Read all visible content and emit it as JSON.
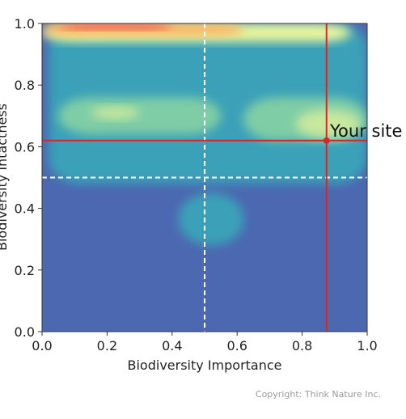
{
  "chart_data": {
    "type": "heatmap",
    "subtype": "filled-contour density",
    "xlabel": "Biodiversity Importance",
    "ylabel": "Biodiversity Intactness",
    "xlim": [
      0.0,
      1.0
    ],
    "ylim": [
      0.0,
      1.0
    ],
    "xticks": [
      "0.0",
      "0.2",
      "0.4",
      "0.6",
      "0.8",
      "1.0"
    ],
    "yticks": [
      "0.0",
      "0.2",
      "0.4",
      "0.6",
      "0.8",
      "1.0"
    ],
    "xtick_values": [
      0.0,
      0.2,
      0.4,
      0.6,
      0.8,
      1.0
    ],
    "ytick_values": [
      0.0,
      0.2,
      0.4,
      0.6,
      0.8,
      1.0
    ],
    "colormap": "Spectral_r",
    "grid": false,
    "reference_lines": {
      "x": 0.5,
      "y": 0.5,
      "style": "dashed",
      "color": "#ffffff"
    },
    "marker": {
      "x": 0.875,
      "y": 0.62,
      "label": "Your site",
      "color": "#d62728"
    },
    "density_regions": [
      {
        "level": "low",
        "color": "#4b68b0",
        "x": [
          0.0,
          1.0
        ],
        "y": [
          0.0,
          1.0
        ]
      },
      {
        "level": "mid",
        "color": "#3aa1b8",
        "x": [
          0.02,
          1.0
        ],
        "y": [
          0.48,
          1.0
        ]
      },
      {
        "level": "mid",
        "color": "#3aa1b8",
        "x": [
          0.42,
          0.62
        ],
        "y": [
          0.28,
          0.45
        ]
      },
      {
        "level": "high",
        "color": "#7fcda6",
        "x": [
          0.05,
          0.55
        ],
        "y": [
          0.64,
          0.76
        ]
      },
      {
        "level": "high",
        "color": "#7fcda6",
        "x": [
          0.62,
          1.0
        ],
        "y": [
          0.62,
          0.76
        ]
      },
      {
        "level": "higher",
        "color": "#c8e89e",
        "x": [
          0.15,
          0.3
        ],
        "y": [
          0.69,
          0.73
        ]
      },
      {
        "level": "higher",
        "color": "#c8e89e",
        "x": [
          0.78,
          0.98
        ],
        "y": [
          0.63,
          0.72
        ]
      },
      {
        "level": "higher",
        "color": "#e8f59c",
        "x": [
          0.0,
          0.95
        ],
        "y": [
          0.94,
          1.0
        ]
      },
      {
        "level": "peak",
        "color": "#fdb565",
        "x": [
          0.0,
          0.62
        ],
        "y": [
          0.96,
          1.0
        ]
      },
      {
        "level": "peak",
        "color": "#f04a4a",
        "x": [
          0.05,
          0.4
        ],
        "y": [
          0.98,
          1.0
        ]
      }
    ]
  },
  "footer": {
    "copyright": "Copyright: Think Nature Inc."
  }
}
